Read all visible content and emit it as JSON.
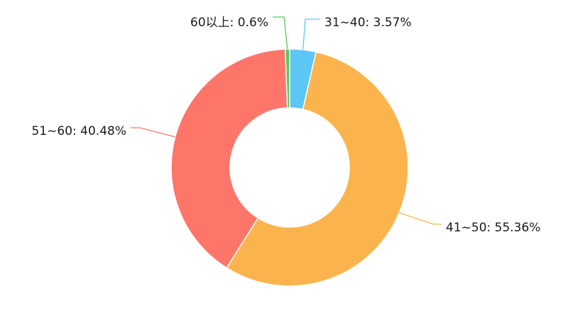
{
  "chart_data": {
    "type": "pie",
    "variant": "donut",
    "title": "",
    "slices": [
      {
        "label": "31~40",
        "value": 3.57,
        "text": "31~40: 3.57%",
        "color": "#5cc6f5"
      },
      {
        "label": "41~50",
        "value": 55.36,
        "text": "41~50: 55.36%",
        "color": "#fbb44d"
      },
      {
        "label": "51~60",
        "value": 40.48,
        "text": "51~60: 40.48%",
        "color": "#fe766a"
      },
      {
        "label": "60以上",
        "value": 0.6,
        "text": "60以上: 0.6%",
        "color": "#5cc65c"
      }
    ],
    "start_angle_deg": 90,
    "direction": "clockwise",
    "legend": "none"
  }
}
